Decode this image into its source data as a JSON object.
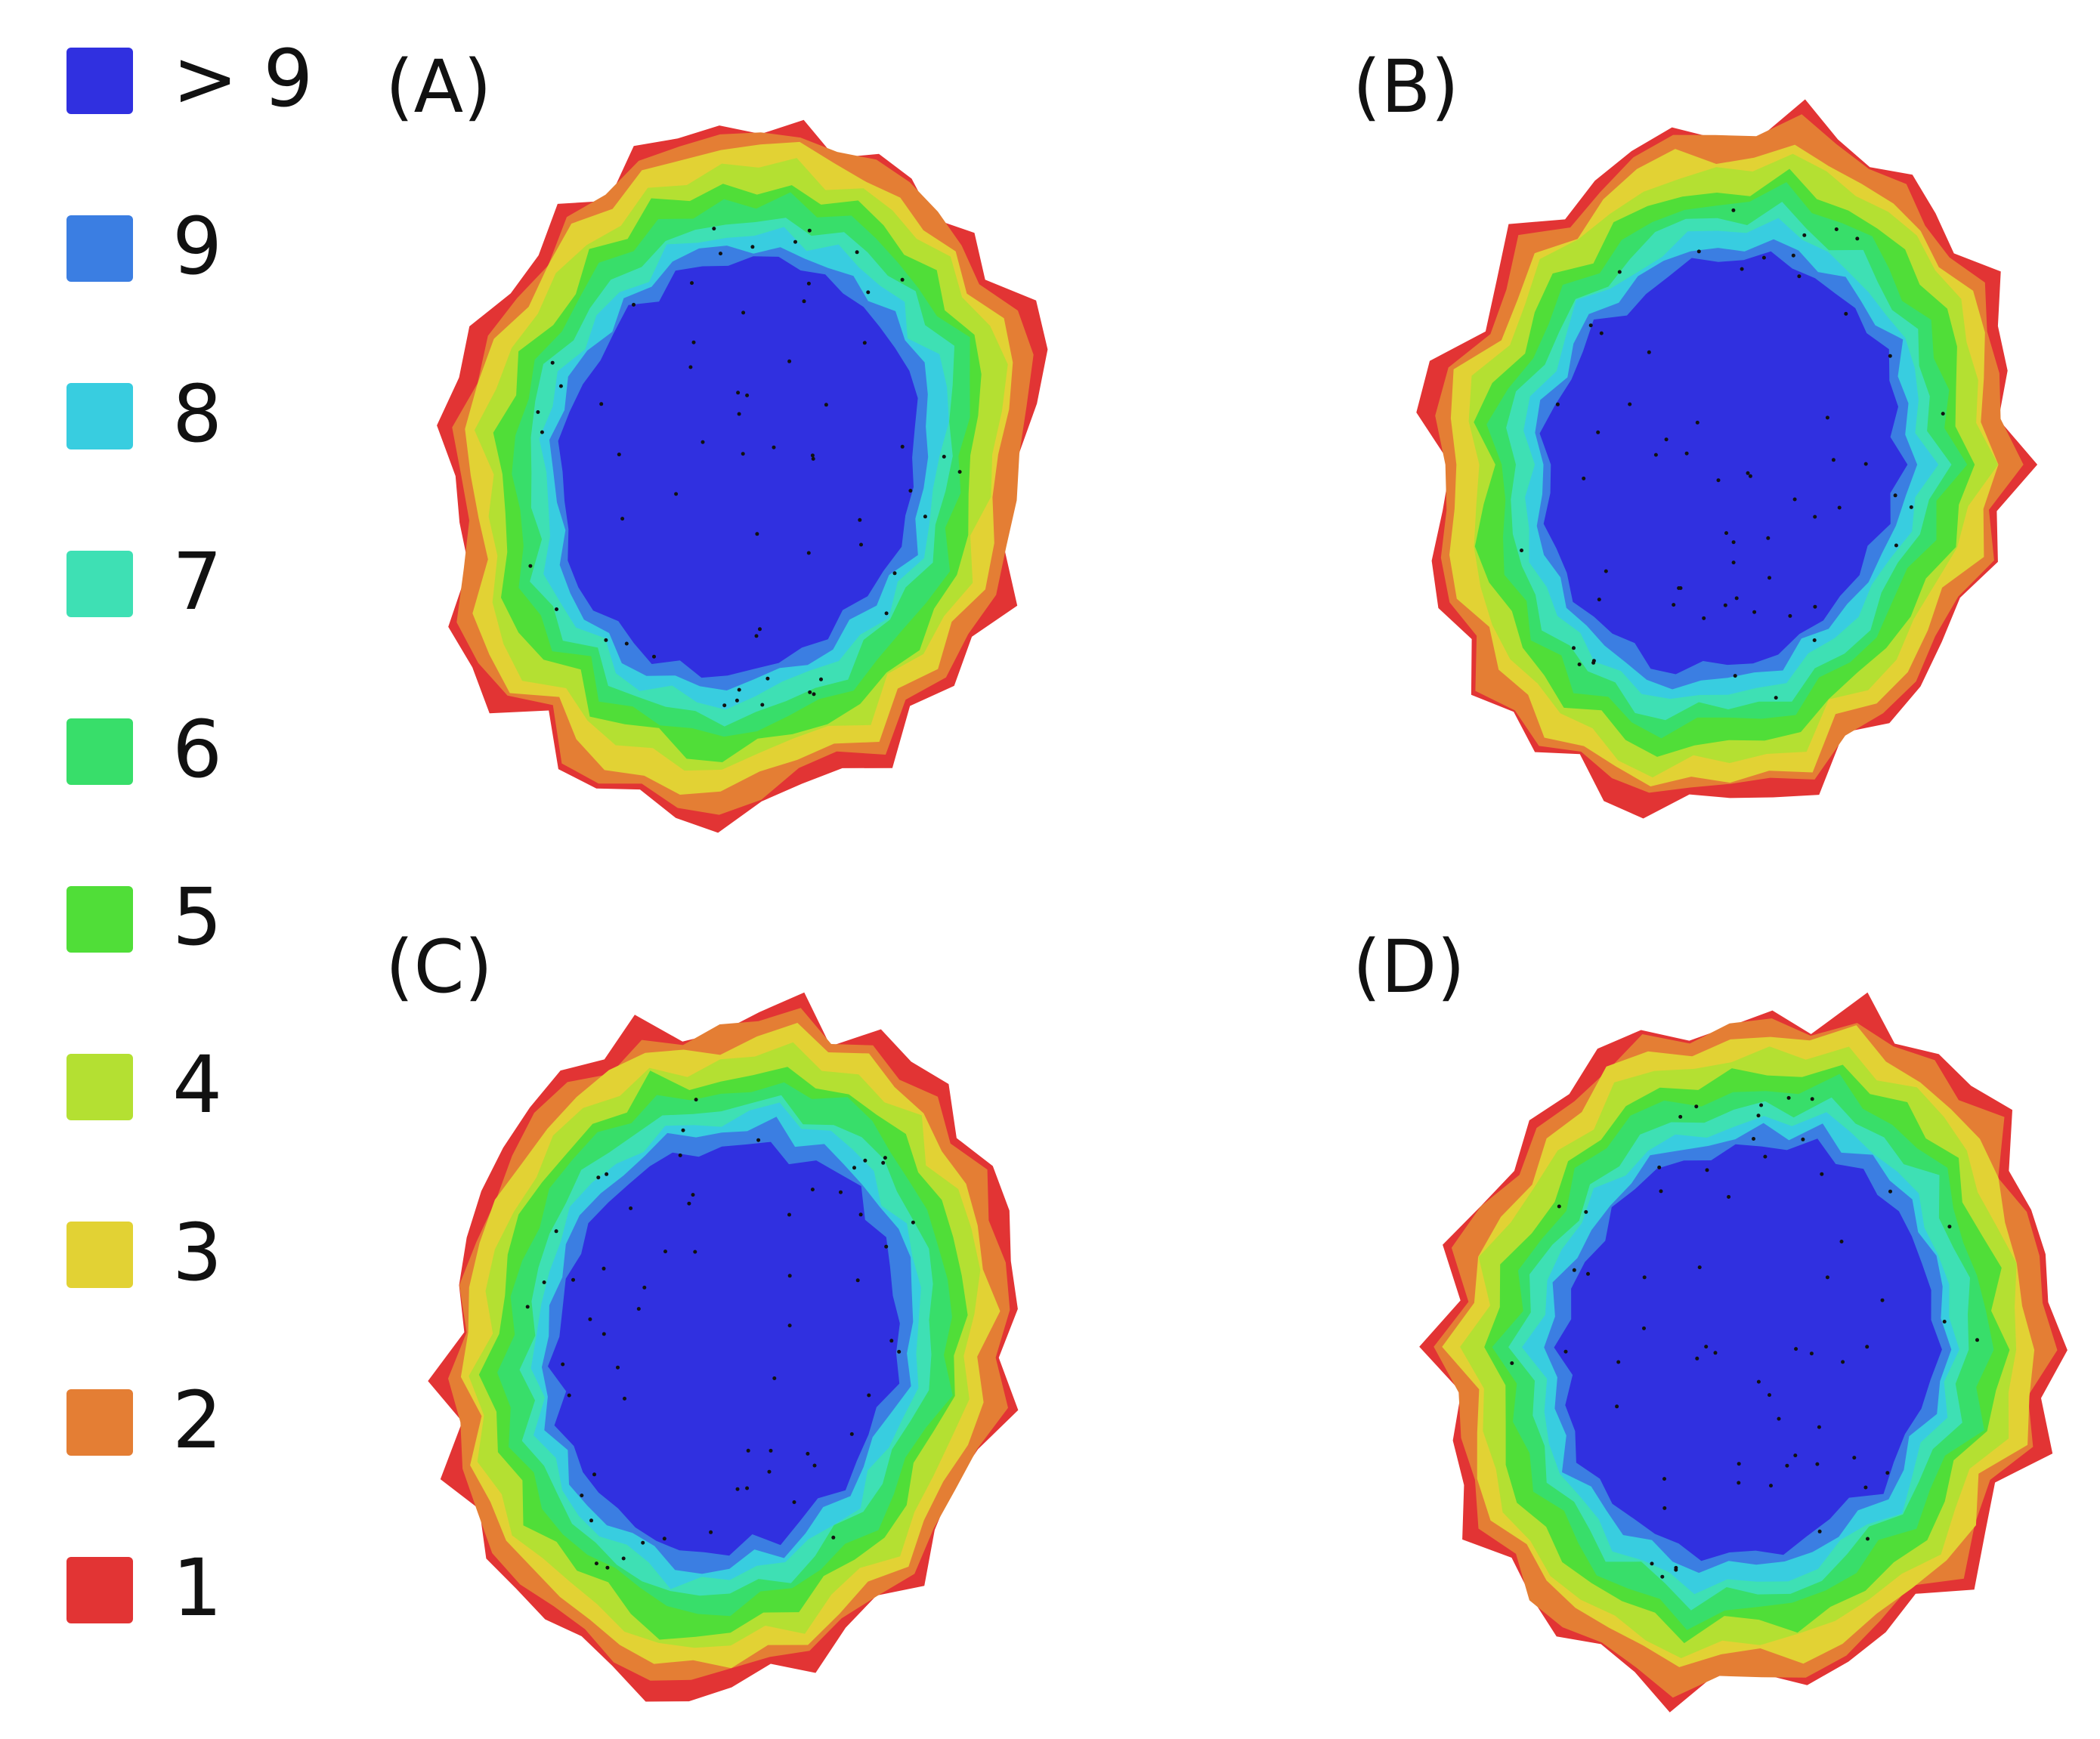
{
  "legend": {
    "items": [
      {
        "label": "> 9",
        "color": "#3030e0"
      },
      {
        "label": "9",
        "color": "#3b7ee2"
      },
      {
        "label": "8",
        "color": "#38cde0"
      },
      {
        "label": "7",
        "color": "#3ee0b4"
      },
      {
        "label": "6",
        "color": "#38de6a"
      },
      {
        "label": "5",
        "color": "#50de38"
      },
      {
        "label": "4",
        "color": "#b4e032"
      },
      {
        "label": "3",
        "color": "#e2d234"
      },
      {
        "label": "2",
        "color": "#e47e34"
      },
      {
        "label": "1",
        "color": "#e23434"
      }
    ]
  },
  "panels": [
    {
      "label": "(A)"
    },
    {
      "label": "(B)"
    },
    {
      "label": "(C)"
    },
    {
      "label": "(D)"
    }
  ]
}
